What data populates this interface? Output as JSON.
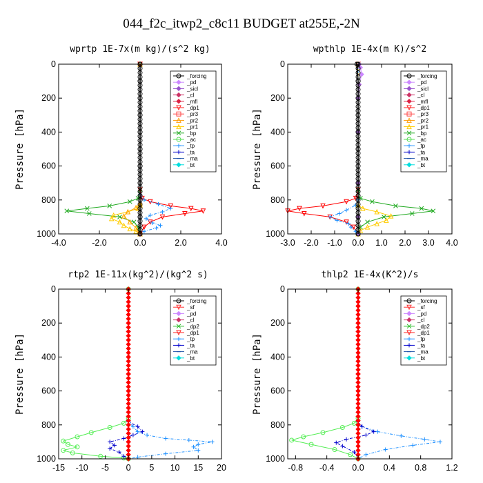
{
  "figure": {
    "title": "044_f2c_itwp2_c8c11  BUDGET at255E,-2N"
  },
  "chart_data": [
    {
      "type": "line",
      "title": "wprtp   1E-7x(m kg)/(s^2 kg)",
      "xlabel": "",
      "ylabel": "Pressure [hPa]",
      "xlim": [
        -4.0,
        4.0
      ],
      "ylim": [
        1000,
        0
      ],
      "xticks": [
        -4.0,
        -2.0,
        0.0,
        2.0,
        4.0
      ],
      "xtick_labels": [
        "-4.0",
        "-2.0",
        "0.0",
        "2.0",
        "4.0"
      ],
      "yticks": [
        0,
        200,
        400,
        600,
        800,
        1000
      ],
      "ytick_labels": [
        "0",
        "200",
        "400",
        "600",
        "800",
        "1000"
      ],
      "grid": false,
      "legend_position": "top-right",
      "legend": [
        "_forcing",
        "_pd",
        "_sicl",
        "_cl",
        "_mfl",
        "_dp1",
        "_pr3",
        "_pr2",
        "_pr1",
        "_bp",
        "_ac",
        "_tp",
        "_ta",
        "_ma",
        "_bt"
      ],
      "series": [
        {
          "name": "_bp",
          "color": "#22aa22",
          "marker": "x",
          "x": [
            0,
            0,
            -0.1,
            -0.5,
            -1.5,
            -2.6,
            -3.6,
            -2.5,
            -1.0,
            -0.3,
            -0.1,
            0
          ],
          "y": [
            0,
            740,
            790,
            810,
            835,
            850,
            865,
            880,
            900,
            930,
            960,
            1000
          ]
        },
        {
          "name": "_dp1",
          "color": "#ff0000",
          "marker": "v",
          "x": [
            0,
            0,
            0.1,
            0.5,
            1.5,
            2.5,
            3.1,
            2.2,
            1.1,
            0.5,
            0.2,
            0
          ],
          "y": [
            0,
            740,
            790,
            810,
            835,
            850,
            865,
            880,
            900,
            930,
            960,
            1000
          ]
        },
        {
          "name": "_pr1",
          "color": "#ffcc00",
          "marker": "^",
          "x": [
            0,
            0,
            -0.1,
            -0.6,
            -1.3,
            -1.4,
            -1.0,
            -0.8,
            -0.5,
            -0.2,
            0
          ],
          "y": [
            0,
            830,
            850,
            870,
            890,
            910,
            930,
            950,
            970,
            985,
            1000
          ]
        },
        {
          "name": "_pr2",
          "color": "#ffaa00",
          "marker": "^",
          "x": [
            0,
            0,
            -0.2,
            -0.6,
            -0.8,
            -0.5,
            -0.2,
            0
          ],
          "y": [
            0,
            820,
            845,
            870,
            895,
            930,
            965,
            1000
          ]
        },
        {
          "name": "_tp",
          "color": "#1e90ff",
          "marker": "+",
          "x": [
            0,
            0,
            0.2,
            0.9,
            1.5,
            1.1,
            0.5,
            0.3,
            0.6,
            1.0,
            0.8,
            0.2,
            0
          ],
          "y": [
            0,
            770,
            800,
            825,
            850,
            870,
            890,
            910,
            935,
            950,
            965,
            985,
            1000
          ]
        },
        {
          "name": "_forcing",
          "color": "#000000",
          "marker": "o",
          "x": [
            0,
            0,
            0,
            0,
            0,
            0,
            0,
            0,
            0,
            0,
            0
          ],
          "y": [
            0,
            100,
            200,
            300,
            400,
            500,
            600,
            700,
            800,
            900,
            1000
          ]
        }
      ]
    },
    {
      "type": "line",
      "title": "wpthlp   1E-4x(m K)/s^2",
      "xlabel": "",
      "ylabel": "Pressure [hPa]",
      "xlim": [
        -3.0,
        4.0
      ],
      "ylim": [
        1000,
        0
      ],
      "xticks": [
        -3.0,
        -2.0,
        -1.0,
        0.0,
        1.0,
        2.0,
        3.0,
        4.0
      ],
      "xtick_labels": [
        "-3.0",
        "-2.0",
        "-1.0",
        "0.0",
        "1.0",
        "2.0",
        "3.0",
        "4.0"
      ],
      "yticks": [
        0,
        200,
        400,
        600,
        800,
        1000
      ],
      "ytick_labels": [
        "0",
        "200",
        "400",
        "600",
        "800",
        "1000"
      ],
      "grid": false,
      "legend_position": "top-right",
      "legend": [
        "_forcing",
        "_pd",
        "_sicl",
        "_cl",
        "_mfl",
        "_dp1",
        "_pr3",
        "_pr2",
        "_pr1",
        "_bp",
        "_ac",
        "_tp",
        "_ta",
        "_ma",
        "_bt"
      ],
      "series": [
        {
          "name": "_dp1",
          "color": "#ff0000",
          "marker": "v",
          "x": [
            0,
            0,
            -0.1,
            -0.5,
            -1.5,
            -2.5,
            -3.0,
            -2.3,
            -1.2,
            -0.5,
            -0.2,
            0
          ],
          "y": [
            0,
            740,
            790,
            810,
            835,
            850,
            865,
            880,
            900,
            930,
            960,
            1000
          ]
        },
        {
          "name": "_bp",
          "color": "#22aa22",
          "marker": "x",
          "x": [
            0,
            0,
            0.1,
            0.6,
            1.6,
            2.7,
            3.2,
            2.3,
            1.1,
            0.4,
            0.1,
            0
          ],
          "y": [
            0,
            740,
            790,
            810,
            835,
            850,
            865,
            880,
            900,
            930,
            960,
            1000
          ]
        },
        {
          "name": "_pr1",
          "color": "#ffcc00",
          "marker": "^",
          "x": [
            0,
            0,
            0.2,
            0.8,
            1.4,
            1.2,
            0.8,
            0.4,
            0.1,
            0
          ],
          "y": [
            0,
            830,
            850,
            870,
            895,
            920,
            940,
            960,
            980,
            1000
          ]
        },
        {
          "name": "_tp",
          "color": "#1e90ff",
          "marker": "+",
          "x": [
            0,
            0,
            -0.1,
            -0.5,
            -0.8,
            -1.2,
            -0.9,
            -0.4,
            -0.3,
            -0.1,
            0
          ],
          "y": [
            0,
            800,
            830,
            860,
            880,
            900,
            920,
            940,
            960,
            985,
            1000
          ]
        },
        {
          "name": "_pd",
          "color": "#cc88ff",
          "marker": "d",
          "x": [
            0.05,
            0.1,
            0.15,
            0.05,
            0.0,
            0.0,
            0.0,
            0,
            0
          ],
          "y": [
            0,
            20,
            60,
            120,
            200,
            400,
            700,
            900,
            1000
          ]
        },
        {
          "name": "_forcing",
          "color": "#000000",
          "marker": "o",
          "x": [
            -0.05,
            0,
            0,
            0,
            0,
            0,
            0,
            0,
            0
          ],
          "y": [
            0,
            100,
            200,
            300,
            400,
            500,
            700,
            900,
            1000
          ]
        }
      ]
    },
    {
      "type": "line",
      "title": "rtp2   1E-11x(kg^2)/(kg^2 s)",
      "xlabel": "",
      "ylabel": "Pressure [hPa]",
      "xlim": [
        -15,
        20
      ],
      "ylim": [
        1000,
        0
      ],
      "xticks": [
        -15,
        -10,
        -5,
        0,
        5,
        10,
        15,
        20
      ],
      "xtick_labels": [
        "-15",
        "-10",
        "-5",
        "0",
        "5",
        "10",
        "15",
        "20"
      ],
      "yticks": [
        0,
        200,
        400,
        600,
        800,
        1000
      ],
      "ytick_labels": [
        "0",
        "200",
        "400",
        "600",
        "800",
        "1000"
      ],
      "grid": false,
      "legend_position": "top-right",
      "legend": [
        "_forcing",
        "_sf",
        "_pd",
        "_cl",
        "_dp2",
        "_dp1",
        "_tp",
        "_ta",
        "_ma",
        "_bt"
      ],
      "series": [
        {
          "name": "_dp1",
          "color": "#55ee55",
          "marker": "o",
          "x": [
            0,
            0,
            -1,
            -4,
            -8,
            -11,
            -14,
            -13,
            -11,
            -14,
            -12,
            -6,
            -1,
            0
          ],
          "y": [
            0,
            760,
            790,
            815,
            845,
            870,
            895,
            915,
            930,
            950,
            965,
            985,
            995,
            1000
          ]
        },
        {
          "name": "_tp",
          "color": "#1e90ff",
          "marker": "+",
          "x": [
            0,
            0,
            1,
            2,
            4,
            8,
            13,
            18,
            15,
            14,
            15,
            8,
            2,
            0
          ],
          "y": [
            0,
            780,
            810,
            840,
            860,
            880,
            890,
            900,
            915,
            930,
            950,
            970,
            990,
            1000
          ]
        },
        {
          "name": "_ta",
          "color": "#0000cc",
          "marker": "+",
          "x": [
            0,
            0,
            2,
            3,
            1,
            -1,
            -4,
            -3,
            -4,
            -2,
            -1,
            0
          ],
          "y": [
            0,
            780,
            810,
            840,
            860,
            880,
            900,
            920,
            940,
            960,
            985,
            1000
          ]
        },
        {
          "name": "_forcing",
          "color": "#ff0000",
          "marker": "d",
          "x": [
            0,
            0,
            0,
            0,
            0,
            0,
            0,
            0,
            0,
            0,
            0
          ],
          "y": [
            0,
            100,
            200,
            300,
            400,
            500,
            600,
            700,
            800,
            900,
            1000
          ]
        }
      ]
    },
    {
      "type": "line",
      "title": "thlp2   1E-4x(K^2)/s",
      "xlabel": "",
      "ylabel": "Pressure [hPa]",
      "xlim": [
        -0.9,
        1.2
      ],
      "ylim": [
        1000,
        0
      ],
      "xticks": [
        -0.8,
        -0.4,
        0.0,
        0.4,
        0.8,
        1.2
      ],
      "xtick_labels": [
        "-0.8",
        "-0.4",
        "0.0",
        "0.4",
        "0.8",
        "1.2"
      ],
      "yticks": [
        0,
        200,
        400,
        600,
        800,
        1000
      ],
      "ytick_labels": [
        "0",
        "200",
        "400",
        "600",
        "800",
        "1000"
      ],
      "grid": false,
      "legend_position": "top-right",
      "legend": [
        "_forcing",
        "_sf",
        "_pd",
        "_cl",
        "_dp2",
        "_dp1",
        "_tp",
        "_ta",
        "_ma",
        "_bt"
      ],
      "series": [
        {
          "name": "_dp1",
          "color": "#55ee55",
          "marker": "o",
          "x": [
            0,
            0,
            -0.05,
            -0.2,
            -0.45,
            -0.7,
            -0.85,
            -0.6,
            -0.3,
            -0.1,
            0
          ],
          "y": [
            0,
            760,
            790,
            815,
            845,
            870,
            890,
            915,
            945,
            975,
            1000
          ]
        },
        {
          "name": "_tp",
          "color": "#1e90ff",
          "marker": "+",
          "x": [
            0,
            0,
            0.05,
            0.25,
            0.55,
            0.85,
            1.05,
            0.7,
            0.35,
            0.1,
            0
          ],
          "y": [
            0,
            780,
            810,
            840,
            865,
            885,
            900,
            920,
            945,
            975,
            1000
          ]
        },
        {
          "name": "_ta",
          "color": "#0000cc",
          "marker": "+",
          "x": [
            0,
            0,
            0.05,
            0.2,
            0.1,
            -0.15,
            -0.28,
            -0.2,
            -0.05,
            0
          ],
          "y": [
            0,
            780,
            810,
            840,
            860,
            885,
            905,
            925,
            960,
            1000
          ]
        },
        {
          "name": "_forcing",
          "color": "#ff0000",
          "marker": "d",
          "x": [
            0,
            0,
            0,
            0,
            0,
            0,
            0,
            0,
            0,
            0,
            0
          ],
          "y": [
            0,
            100,
            200,
            300,
            400,
            500,
            600,
            700,
            800,
            900,
            1000
          ]
        }
      ]
    }
  ],
  "legend_styles": {
    "_forcing": {
      "color": "#000000",
      "marker": "o"
    },
    "_pd": {
      "color": "#cc88ff",
      "marker": "d"
    },
    "_sicl": {
      "color": "#9955cc",
      "marker": "d"
    },
    "_cl": {
      "color": "#cc3366",
      "marker": "d"
    },
    "_mfl": {
      "color": "#dd2244",
      "marker": "d"
    },
    "_dp1": {
      "color": "#ff2222",
      "marker": "v"
    },
    "_pr3": {
      "color": "#ff4444",
      "marker": "s"
    },
    "_pr2": {
      "color": "#ff9900",
      "marker": "^"
    },
    "_pr1": {
      "color": "#ffcc00",
      "marker": "^"
    },
    "_bp": {
      "color": "#22aa22",
      "marker": "x"
    },
    "_ac": {
      "color": "#55dd55",
      "marker": "o"
    },
    "_tp": {
      "color": "#1e90ff",
      "marker": "+"
    },
    "_ta": {
      "color": "#0000cc",
      "marker": "+"
    },
    "_ma": {
      "color": "#2255aa",
      "marker": "-"
    },
    "_bt": {
      "color": "#00dddd",
      "marker": "d"
    },
    "_sf": {
      "color": "#ff3333",
      "marker": "v"
    },
    "_dp2": {
      "color": "#22bb22",
      "marker": "x"
    }
  }
}
